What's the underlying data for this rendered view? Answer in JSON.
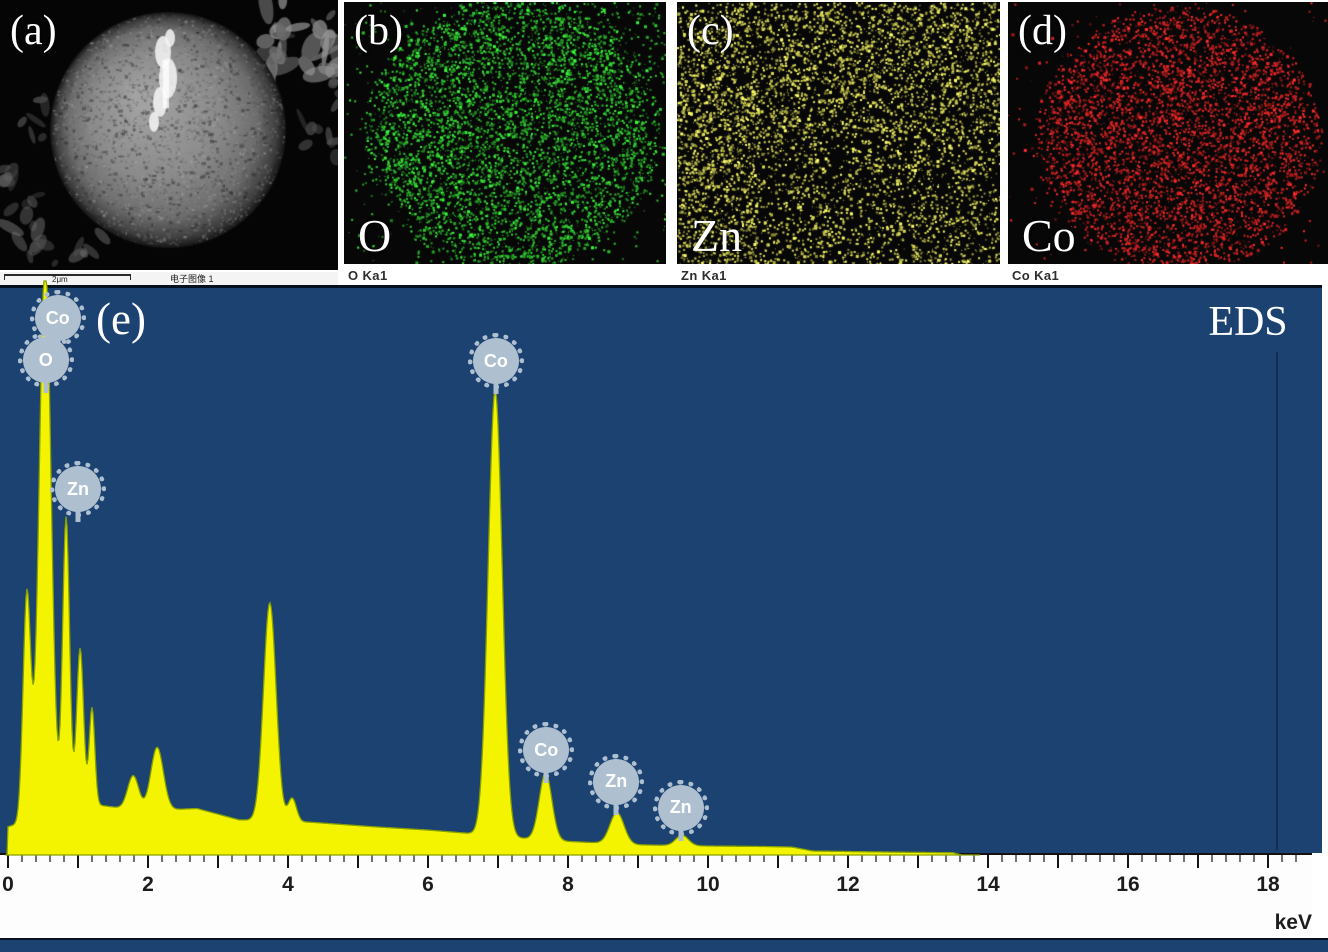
{
  "panels": {
    "a": {
      "label": "(a)",
      "type": "sem-image",
      "scalebar_text": "2μm",
      "caption": "电子图像 1"
    },
    "b": {
      "label": "(b)",
      "element": "O",
      "line_label": "O Ka1",
      "dot_color": "#2fc52f",
      "distribution": "sphere"
    },
    "c": {
      "label": "(c)",
      "element": "Zn",
      "line_label": "Zn Ka1",
      "dot_color": "#d9d957",
      "distribution": "uniform"
    },
    "d": {
      "label": "(d)",
      "element": "Co",
      "line_label": "Co Ka1",
      "dot_color": "#d42222",
      "distribution": "sphere"
    }
  },
  "spectrum": {
    "label": "(e)",
    "title": "EDS",
    "background_color": "#1b4271",
    "curve_color": "#f4f400",
    "curve_edge_color": "#86a000",
    "bubble_color": "#aebfd0"
  },
  "chart_data": {
    "type": "area",
    "title": "EDS",
    "xlabel": "keV",
    "ylabel": "",
    "x_range": [
      0,
      18.6
    ],
    "x_ticks": [
      0,
      2,
      4,
      6,
      8,
      10,
      12,
      14,
      16,
      18
    ],
    "x_tick_labels": [
      "0",
      "2",
      "4",
      "6",
      "8",
      "10",
      "12",
      "14",
      "16",
      "18"
    ],
    "minor_tick_step_kev": 0.2,
    "y_axis": "counts, no tick labels shown",
    "grid": false,
    "series": [
      {
        "name": "EDS spectrum",
        "color": "#f4f400",
        "peaks": [
          {
            "kev": 0.27,
            "rel_height": 0.46,
            "sigma_kev": 0.055
          },
          {
            "kev": 0.53,
            "rel_height": 1.05,
            "sigma_kev": 0.085,
            "clipped_at_top": true
          },
          {
            "kev": 0.83,
            "rel_height": 0.595,
            "sigma_kev": 0.05
          },
          {
            "kev": 1.03,
            "rel_height": 0.365,
            "sigma_kev": 0.05
          },
          {
            "kev": 1.2,
            "rel_height": 0.26,
            "sigma_kev": 0.04
          },
          {
            "kev": 1.79,
            "rel_height": 0.14,
            "sigma_kev": 0.08
          },
          {
            "kev": 2.13,
            "rel_height": 0.19,
            "sigma_kev": 0.09
          },
          {
            "kev": 3.74,
            "rel_height": 0.445,
            "sigma_kev": 0.09
          },
          {
            "kev": 4.06,
            "rel_height": 0.1,
            "sigma_kev": 0.06
          },
          {
            "kev": 6.96,
            "rel_height": 0.82,
            "sigma_kev": 0.1
          },
          {
            "kev": 7.68,
            "rel_height": 0.145,
            "sigma_kev": 0.09
          },
          {
            "kev": 8.7,
            "rel_height": 0.075,
            "sigma_kev": 0.1
          },
          {
            "kev": 9.63,
            "rel_height": 0.035,
            "sigma_kev": 0.09
          }
        ],
        "baseline": [
          [
            0,
            0.05
          ],
          [
            0.6,
            0.07
          ],
          [
            1.3,
            0.088
          ],
          [
            1.9,
            0.078
          ],
          [
            2.7,
            0.082
          ],
          [
            3.3,
            0.062
          ],
          [
            4.3,
            0.058
          ],
          [
            5.2,
            0.05
          ],
          [
            6.0,
            0.044
          ],
          [
            6.6,
            0.038
          ],
          [
            7.3,
            0.03
          ],
          [
            8.0,
            0.024
          ],
          [
            9.0,
            0.018
          ],
          [
            9.9,
            0.016
          ],
          [
            10.8,
            0.015
          ],
          [
            11.2,
            0.014
          ],
          [
            11.5,
            0.007
          ],
          [
            12.7,
            0.005
          ],
          [
            13.5,
            0.004
          ],
          [
            13.63,
            0.0
          ],
          [
            18.6,
            0.0
          ]
        ]
      }
    ],
    "peak_labels": [
      {
        "element": "Co",
        "kev": 0.71,
        "y_frac": 0.053
      },
      {
        "element": "O",
        "kev": 0.54,
        "y_frac": 0.127
      },
      {
        "element": "Zn",
        "kev": 1.0,
        "y_frac": 0.355
      },
      {
        "element": "Co",
        "kev": 6.97,
        "y_frac": 0.129
      },
      {
        "element": "Co",
        "kev": 7.69,
        "y_frac": 0.815
      },
      {
        "element": "Zn",
        "kev": 8.69,
        "y_frac": 0.871
      },
      {
        "element": "Zn",
        "kev": 9.61,
        "y_frac": 0.917
      }
    ]
  }
}
